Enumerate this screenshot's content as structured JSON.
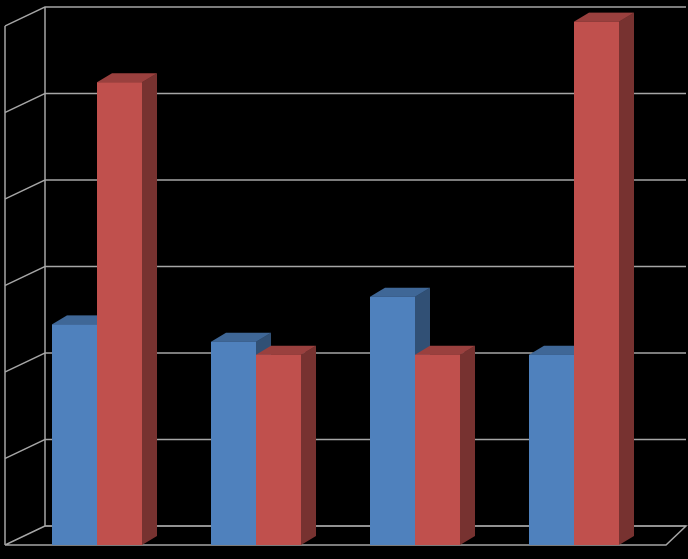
{
  "chart_data": {
    "type": "bar",
    "categories": [
      "",
      "",
      "",
      ""
    ],
    "series": [
      {
        "color": "#4f81bd",
        "values": [
          2.55,
          2.35,
          2.87,
          2.2
        ]
      },
      {
        "color": "#c0504d",
        "values": [
          5.35,
          2.2,
          2.2,
          6.05
        ]
      }
    ],
    "ylim": [
      0,
      6
    ],
    "grid": true,
    "legend": "none",
    "title": "",
    "xlabel": "",
    "ylabel": ""
  }
}
